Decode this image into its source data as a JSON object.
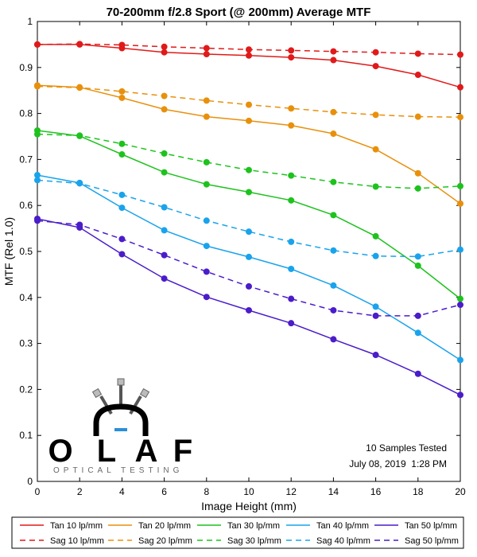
{
  "chart_data": {
    "type": "line",
    "title": "70-200mm f/2.8 Sport (@ 200mm) Average MTF",
    "xlabel": "Image Height (mm)",
    "ylabel": "MTF (Rel 1.0)",
    "xlim": [
      0,
      20
    ],
    "ylim": [
      0,
      1
    ],
    "x_ticks": [
      0,
      2,
      4,
      6,
      8,
      10,
      12,
      14,
      16,
      18,
      20
    ],
    "y_ticks": [
      0,
      0.1,
      0.2,
      0.3,
      0.4,
      0.5,
      0.6,
      0.7,
      0.8,
      0.9,
      1
    ],
    "x_tick_labels": [
      "0",
      "2",
      "4",
      "6",
      "8",
      "10",
      "12",
      "14",
      "16",
      "18",
      "20"
    ],
    "y_tick_labels": [
      "0",
      "0.1",
      "0.2",
      "0.3",
      "0.4",
      "0.5",
      "0.6",
      "0.7",
      "0.8",
      "0.9",
      "1"
    ],
    "grid": false,
    "x": [
      0,
      2,
      4,
      6,
      8,
      10,
      12,
      14,
      16,
      18,
      20
    ],
    "series": [
      {
        "name": "Tan 10 lp/mm",
        "color": "#e01a1a",
        "dash": false,
        "values": [
          0.95,
          0.95,
          0.942,
          0.933,
          0.929,
          0.926,
          0.922,
          0.916,
          0.903,
          0.884,
          0.857
        ]
      },
      {
        "name": "Sag 10 lp/mm",
        "color": "#e01a1a",
        "dash": true,
        "values": [
          0.95,
          0.951,
          0.949,
          0.945,
          0.942,
          0.939,
          0.937,
          0.935,
          0.933,
          0.93,
          0.928
        ]
      },
      {
        "name": "Tan 20 lp/mm",
        "color": "#e8900c",
        "dash": false,
        "values": [
          0.861,
          0.857,
          0.834,
          0.809,
          0.793,
          0.784,
          0.774,
          0.756,
          0.722,
          0.67,
          0.604
        ]
      },
      {
        "name": "Sag 20 lp/mm",
        "color": "#e8900c",
        "dash": true,
        "values": [
          0.859,
          0.856,
          0.848,
          0.838,
          0.828,
          0.819,
          0.811,
          0.803,
          0.797,
          0.793,
          0.792
        ]
      },
      {
        "name": "Tan 30 lp/mm",
        "color": "#1ec21e",
        "dash": false,
        "values": [
          0.763,
          0.751,
          0.711,
          0.672,
          0.646,
          0.629,
          0.611,
          0.579,
          0.533,
          0.469,
          0.397
        ]
      },
      {
        "name": "Sag 30 lp/mm",
        "color": "#1ec21e",
        "dash": true,
        "values": [
          0.755,
          0.752,
          0.734,
          0.713,
          0.694,
          0.677,
          0.665,
          0.651,
          0.641,
          0.637,
          0.642
        ]
      },
      {
        "name": "Tan 40 lp/mm",
        "color": "#1aa3ec",
        "dash": false,
        "values": [
          0.666,
          0.649,
          0.595,
          0.546,
          0.512,
          0.488,
          0.462,
          0.426,
          0.38,
          0.323,
          0.264
        ]
      },
      {
        "name": "Sag 40 lp/mm",
        "color": "#1aa3ec",
        "dash": true,
        "values": [
          0.655,
          0.648,
          0.623,
          0.596,
          0.567,
          0.543,
          0.521,
          0.502,
          0.49,
          0.489,
          0.504
        ]
      },
      {
        "name": "Tan 50 lp/mm",
        "color": "#4b1cc9",
        "dash": false,
        "values": [
          0.571,
          0.552,
          0.494,
          0.441,
          0.401,
          0.372,
          0.344,
          0.309,
          0.275,
          0.234,
          0.188
        ]
      },
      {
        "name": "Sag 50 lp/mm",
        "color": "#4b1cc9",
        "dash": true,
        "values": [
          0.567,
          0.558,
          0.527,
          0.492,
          0.456,
          0.424,
          0.397,
          0.372,
          0.36,
          0.36,
          0.384
        ]
      }
    ],
    "annotations": [
      "10 Samples Tested",
      "July 08, 2019  1:28 PM"
    ],
    "legend_position": "bottom",
    "legend_columns": [
      [
        "Tan 10 lp/mm",
        "Sag 10 lp/mm"
      ],
      [
        "Tan 20 lp/mm",
        "Sag 20 lp/mm"
      ],
      [
        "Tan 30 lp/mm",
        "Sag 30 lp/mm"
      ],
      [
        "Tan 40 lp/mm",
        "Sag 40 lp/mm"
      ],
      [
        "Tan 50 lp/mm",
        "Sag 50 lp/mm"
      ]
    ]
  },
  "logo": {
    "letters": [
      "O",
      "L",
      "A",
      "F"
    ],
    "subtitle": "OPTICAL TESTING",
    "accent_color": "#2a8fd8"
  }
}
